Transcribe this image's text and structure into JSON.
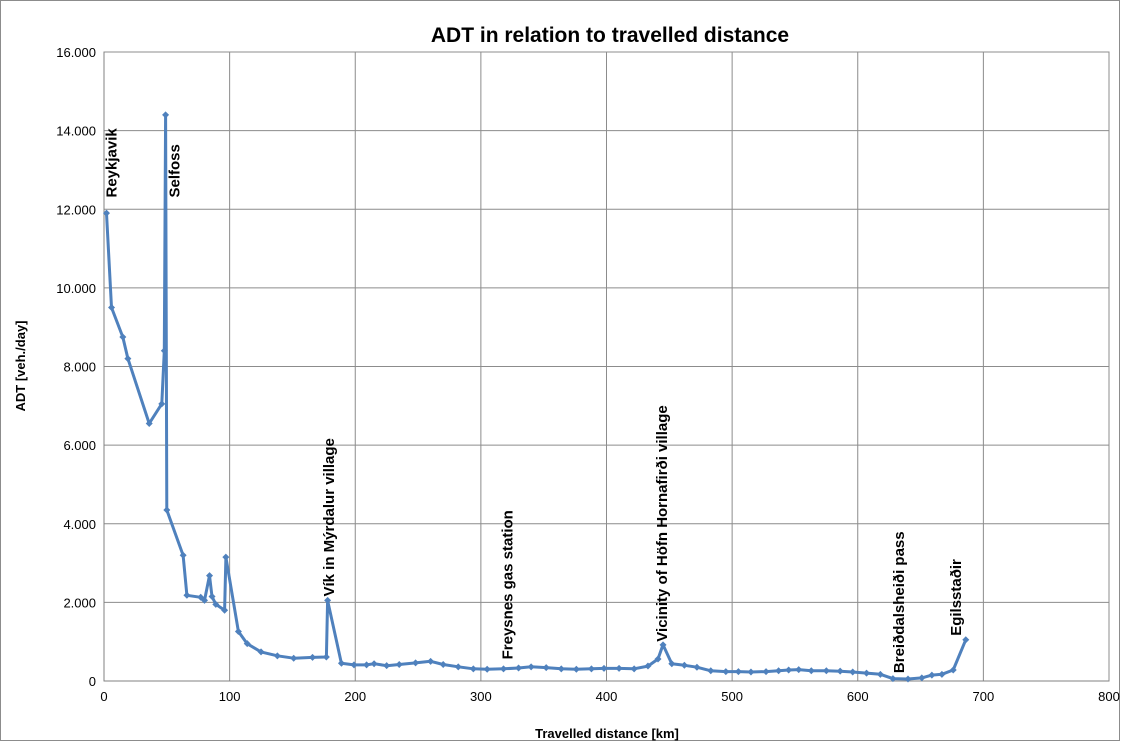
{
  "chart_data": {
    "type": "line",
    "title": "ADT in relation to travelled distance",
    "xlabel": "Travelled distance [km]",
    "ylabel": "ADT [veh./day]",
    "xlim": [
      0,
      800
    ],
    "ylim": [
      0,
      16000
    ],
    "x_ticks": [
      0,
      100,
      200,
      300,
      400,
      500,
      600,
      700,
      800
    ],
    "y_ticks": [
      0,
      2000,
      4000,
      6000,
      8000,
      10000,
      12000,
      14000,
      16000
    ],
    "x_tick_labels": [
      "0",
      "100",
      "200",
      "300",
      "400",
      "500",
      "600",
      "700",
      "800"
    ],
    "y_tick_labels": [
      "0",
      "2.000",
      "4.000",
      "6.000",
      "8.000",
      "10.000",
      "12.000",
      "14.000",
      "16.000"
    ],
    "grid": true,
    "legend": "none",
    "series_color": "#4f81bd",
    "series": [
      {
        "name": "",
        "points": [
          [
            2,
            11900
          ],
          [
            6,
            9500
          ],
          [
            15,
            8750
          ],
          [
            19,
            8200
          ],
          [
            36,
            6550
          ],
          [
            46,
            7050
          ],
          [
            48,
            8400
          ],
          [
            49,
            14400
          ],
          [
            50,
            4350
          ],
          [
            63,
            3200
          ],
          [
            66,
            2180
          ],
          [
            77,
            2130
          ],
          [
            80,
            2050
          ],
          [
            84,
            2680
          ],
          [
            86,
            2150
          ],
          [
            89,
            1950
          ],
          [
            96,
            1800
          ],
          [
            97,
            3150
          ],
          [
            107,
            1260
          ],
          [
            114,
            950
          ],
          [
            125,
            740
          ],
          [
            138,
            640
          ],
          [
            151,
            580
          ],
          [
            166,
            600
          ],
          [
            177,
            610
          ],
          [
            178,
            2050
          ],
          [
            189,
            450
          ],
          [
            199,
            410
          ],
          [
            209,
            410
          ],
          [
            215,
            440
          ],
          [
            225,
            390
          ],
          [
            235,
            420
          ],
          [
            248,
            460
          ],
          [
            260,
            500
          ],
          [
            270,
            420
          ],
          [
            282,
            360
          ],
          [
            294,
            310
          ],
          [
            305,
            300
          ],
          [
            318,
            310
          ],
          [
            330,
            330
          ],
          [
            340,
            360
          ],
          [
            352,
            340
          ],
          [
            364,
            310
          ],
          [
            376,
            300
          ],
          [
            388,
            310
          ],
          [
            398,
            320
          ],
          [
            410,
            320
          ],
          [
            422,
            310
          ],
          [
            433,
            380
          ],
          [
            441,
            560
          ],
          [
            445,
            920
          ],
          [
            452,
            440
          ],
          [
            462,
            400
          ],
          [
            472,
            350
          ],
          [
            483,
            260
          ],
          [
            495,
            240
          ],
          [
            505,
            240
          ],
          [
            515,
            230
          ],
          [
            527,
            240
          ],
          [
            537,
            260
          ],
          [
            545,
            280
          ],
          [
            553,
            290
          ],
          [
            563,
            260
          ],
          [
            575,
            260
          ],
          [
            586,
            250
          ],
          [
            596,
            230
          ],
          [
            607,
            200
          ],
          [
            618,
            170
          ],
          [
            628,
            60
          ],
          [
            640,
            50
          ],
          [
            651,
            80
          ],
          [
            659,
            150
          ],
          [
            667,
            170
          ],
          [
            676,
            280
          ],
          [
            686,
            1050
          ]
        ]
      }
    ],
    "annotations": [
      {
        "text": "Reykjavik",
        "x": 10,
        "y": 12300
      },
      {
        "text": "Selfoss",
        "x": 60,
        "y": 12300
      },
      {
        "text": "Vík in Mýrdalur village",
        "x": 183,
        "y": 2150
      },
      {
        "text": "Freysnes gas station",
        "x": 325,
        "y": 550
      },
      {
        "text": "Vicinity of Höfn Hornafirði village",
        "x": 448,
        "y": 1000
      },
      {
        "text": "Breiðdalsheiði pass",
        "x": 637,
        "y": 200
      },
      {
        "text": "Egilsstaðir",
        "x": 682,
        "y": 1150
      }
    ]
  }
}
